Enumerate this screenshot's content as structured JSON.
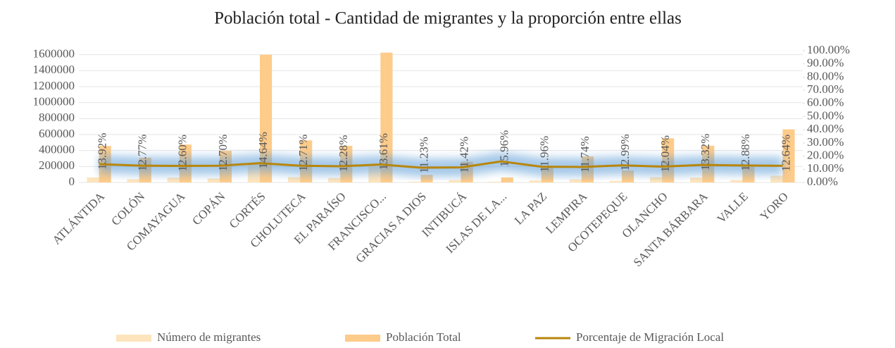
{
  "chart_data": {
    "type": "bar",
    "title": "Población total - Cantidad de migrantes y la proporción entre ellas",
    "categories": [
      "ATLÁNTIDA",
      "COLÓN",
      "COMAYAGUA",
      "COPÁN",
      "CORTÉS",
      "CHOLUTECA",
      "EL PARAÍSO",
      "FRANCISCO...",
      "GRACIAS A DIOS",
      "INTIBUCÁ",
      "ISLAS DE LA...",
      "LA PAZ",
      "LEMPIRA",
      "OCOTEPEQUE",
      "OLANCHO",
      "SANTA BÁRBARA",
      "VALLE",
      "YORO"
    ],
    "series": [
      {
        "name": "Número de migrantes",
        "type": "bar",
        "color": "#fde4bd",
        "values": [
          63600,
          39500,
          59900,
          50000,
          234000,
          67000,
          56000,
          221000,
          10700,
          29700,
          10000,
          24500,
          38100,
          19500,
          66600,
          61300,
          28600,
          84100
        ]
      },
      {
        "name": "Población Total",
        "type": "bar",
        "color": "#fdcb8a",
        "values": [
          457000,
          310000,
          475000,
          396000,
          1600000,
          527000,
          458000,
          1626000,
          95000,
          260000,
          63000,
          205000,
          325000,
          150000,
          553000,
          460000,
          222000,
          665000
        ]
      },
      {
        "name": "Porcentaje de Migración Local",
        "type": "line",
        "axis": "y2",
        "color": "#b8860b",
        "values": [
          13.92,
          12.77,
          12.6,
          12.7,
          14.64,
          12.71,
          12.28,
          13.61,
          11.23,
          11.42,
          15.96,
          11.96,
          11.74,
          12.99,
          12.04,
          13.32,
          12.88,
          12.64
        ],
        "value_labels": [
          "13.92%",
          "12.77%",
          "12.60%",
          "12.70%",
          "14.64%",
          "12.71%",
          "12.28%",
          "13.61%",
          "11.23%",
          "11.42%",
          "15.96%",
          "11.96%",
          "11.74%",
          "12.99%",
          "12.04%",
          "13.32%",
          "12.88%",
          "12.64%"
        ]
      }
    ],
    "ylim": [
      0,
      1650000
    ],
    "yticks": [
      0,
      200000,
      400000,
      600000,
      800000,
      1000000,
      1200000,
      1400000,
      1600000
    ],
    "y2lim": [
      0,
      100
    ],
    "y2ticks": [
      {
        "value": 0,
        "label": "0.00%"
      },
      {
        "value": 10,
        "label": "10.00%"
      },
      {
        "value": 20,
        "label": "20.00%"
      },
      {
        "value": 30,
        "label": "30.00%"
      },
      {
        "value": 40,
        "label": "40.00%"
      },
      {
        "value": 50,
        "label": "50.00%"
      },
      {
        "value": 60,
        "label": "60.00%"
      },
      {
        "value": 70,
        "label": "70.00%"
      },
      {
        "value": 80,
        "label": "80.00%"
      },
      {
        "value": 90,
        "label": "90.00%"
      },
      {
        "value": 100,
        "label": "100.00%"
      }
    ],
    "grid": true,
    "legend": "bottom"
  }
}
